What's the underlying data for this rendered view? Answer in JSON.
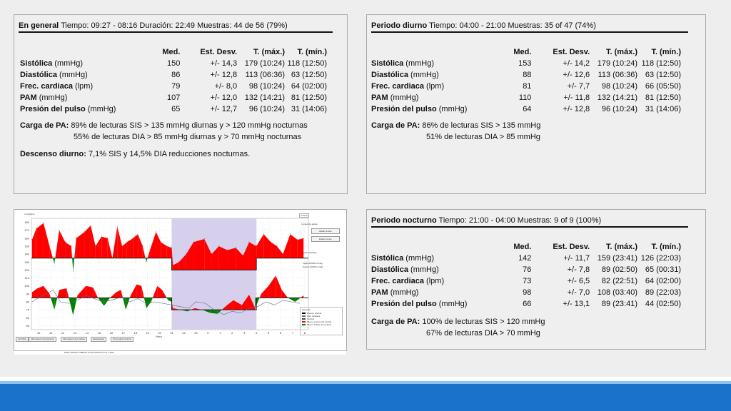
{
  "general": {
    "title": "En general",
    "info": "Tiempo: 09:27 - 08:16 Duración: 22:49 Muestras: 44 de 56 (79%)",
    "headers": [
      "Med.",
      "Est. Desv.",
      "T. (máx.)",
      "T. (mín.)"
    ],
    "rows": [
      {
        "bold": "Sistólica",
        "rest": " (mmHg)",
        "med": "150",
        "sd": "+/- 14,3",
        "max": "179 (10:24)",
        "min": "118 (12:50)"
      },
      {
        "bold": "Diastólica",
        "rest": " (mmHg)",
        "med": "86",
        "sd": "+/- 12,8",
        "max": "113 (06:36)",
        "min": "63 (12:50)"
      },
      {
        "bold": "Frec. cardiaca",
        "rest": " (lpm)",
        "med": "79",
        "sd": "+/- 8,0",
        "max": "98 (10:24)",
        "min": "64 (02:00)"
      },
      {
        "bold": "PAM",
        "rest": " (mmHg)",
        "med": "107",
        "sd": "+/- 12,0",
        "max": "132 (14:21)",
        "min": "81 (12:50)"
      },
      {
        "bold": "Presión del pulso",
        "rest": " (mmHg)",
        "med": "65",
        "sd": "+/- 12,7",
        "max": "96 (10:24)",
        "min": "31 (14:06)"
      }
    ],
    "load_label": "Carga de PA:",
    "load_line1": " 89% de lecturas SIS > 135 mmHg diurnas y > 120 mmHg nocturnas",
    "load_line2": "55% de lecturas DIA > 85 mmHg diurnas y > 70 mmHg nocturnas",
    "dip_label": "Descenso diurno:",
    "dip_text": " 7,1% SIS y 14,5% DIA reducciones nocturnas."
  },
  "day": {
    "title": "Periodo diurno",
    "info": "Tiempo: 04:00 - 21:00 Muestras: 35 of 47 (74%)",
    "headers": [
      "Med.",
      "Est. Desv.",
      "T. (máx.)",
      "T. (mín.)"
    ],
    "rows": [
      {
        "bold": "Sistólica",
        "rest": " (mmHg)",
        "med": "153",
        "sd": "+/- 14,2",
        "max": "179 (10:24)",
        "min": "118 (12:50)"
      },
      {
        "bold": "Diastólica",
        "rest": " (mmHg)",
        "med": "88",
        "sd": "+/- 12,6",
        "max": "113 (06:36)",
        "min": "63 (12:50)"
      },
      {
        "bold": "Frec. cardiaca",
        "rest": " (lpm)",
        "med": "81",
        "sd": "+/- 7,7",
        "max": "98 (10:24)",
        "min": "66 (05:50)"
      },
      {
        "bold": "PAM",
        "rest": " (mmHg)",
        "med": "110",
        "sd": "+/- 11,8",
        "max": "132 (14:21)",
        "min": "81 (12:50)"
      },
      {
        "bold": "Presión del pulso",
        "rest": " (mmHg)",
        "med": "64",
        "sd": "+/- 12,8",
        "max": "96 (10:24)",
        "min": "31 (14:06)"
      }
    ],
    "load_label": "Carga de PA:",
    "load_line1": " 86% de lecturas SIS > 135 mmHg",
    "load_line2": "51% de lecturas DIA > 85 mmHg"
  },
  "night": {
    "title": "Periodo nocturno",
    "info": "Tiempo: 21:00 - 04:00 Muestras: 9 of 9 (100%)",
    "headers": [
      "Med.",
      "Est. Desv.",
      "T. (máx.)",
      "T. (mín.)"
    ],
    "rows": [
      {
        "bold": "Sistólica",
        "rest": " (mmHg)",
        "med": "142",
        "sd": "+/- 11,7",
        "max": "159 (23:41)",
        "min": "126 (22:03)"
      },
      {
        "bold": "Diastólica",
        "rest": " (mmHg)",
        "med": "76",
        "sd": "+/- 7,8",
        "max": "89 (02:50)",
        "min": "65 (00:31)"
      },
      {
        "bold": "Frec. cardiaca",
        "rest": " (lpm)",
        "med": "73",
        "sd": "+/- 6,5",
        "max": "82 (22:51)",
        "min": "64 (02:00)"
      },
      {
        "bold": "PAM",
        "rest": " (mmHg)",
        "med": "98",
        "sd": "+/- 7,0",
        "max": "108 (03:40)",
        "min": "89 (22:03)"
      },
      {
        "bold": "Presión del pulso",
        "rest": " (mmHg)",
        "med": "66",
        "sd": "+/- 13,1",
        "max": "89 (23:41)",
        "min": "44 (02:50)"
      }
    ],
    "load_label": "Carga de PA:",
    "load_line1": " 100% de lecturas SIS > 120 mmHg",
    "load_line2": "67% de lecturas DIA > 70 mmHg"
  },
  "chart_panel": {
    "y_unit": "mmHg/lpm",
    "tab_umbral": "Umbral",
    "limits_label": "Límites de ajuste",
    "edit_limits": "Editar límites",
    "edit_time": "Editar tiempo",
    "current_limits_label": "Ajustes actuales",
    "vigilia": "Vigilia 135/85 mmHg",
    "sueno": "Sueño 120/70 mmHg",
    "legend_title": "Leyenda",
    "legend": [
      "Presión arterial",
      "Frec cardiaca",
      "Umbral",
      "PA por encima del umbral",
      "PA por debajo del umbral"
    ],
    "xlabel": "Hora",
    "tabs": [
      "Ver PDA",
      "Información del paciente",
      "Información del médico",
      "Estadísticas",
      "Promedios horarios"
    ],
    "status": "Diario-2016/17 OMRON Tensión(2016-10-11) 1 Dato",
    "colors": {
      "above": "#ff0000",
      "below": "#008000",
      "night": "#d6d0ec",
      "hr": "#5a6b8c"
    }
  },
  "chart_data": {
    "type": "area",
    "y_ticks": [
      "180",
      "170",
      "160",
      "150",
      "140",
      "130",
      "120",
      "110",
      "100",
      "90",
      "80",
      "70",
      "60",
      "50"
    ],
    "ylim": [
      45,
      185
    ],
    "xlim": [
      9.4,
      32.3
    ],
    "x_ticks": [
      "10",
      "11",
      "12",
      "13",
      "14",
      "15",
      "16",
      "17",
      "18",
      "19",
      "20",
      "21",
      "22",
      "23",
      "0",
      "1",
      "2",
      "3",
      "4",
      "5",
      "6",
      "7",
      "8"
    ],
    "night_start": 21.0,
    "night_end": 28.0,
    "sys_threshold_day": 135,
    "sys_threshold_night": 120,
    "dia_threshold_day": 85,
    "dia_threshold_night": 70,
    "systolic": [
      [
        9.45,
        158
      ],
      [
        9.8,
        172
      ],
      [
        10.4,
        179
      ],
      [
        10.9,
        150
      ],
      [
        11.3,
        128
      ],
      [
        11.7,
        170
      ],
      [
        12.2,
        155
      ],
      [
        12.7,
        150
      ],
      [
        12.85,
        118
      ],
      [
        13.1,
        160
      ],
      [
        13.8,
        168
      ],
      [
        14.3,
        176
      ],
      [
        14.7,
        150
      ],
      [
        15.2,
        162
      ],
      [
        15.7,
        160
      ],
      [
        16.1,
        135
      ],
      [
        16.5,
        175
      ],
      [
        16.9,
        150
      ],
      [
        17.3,
        155
      ],
      [
        17.8,
        160
      ],
      [
        18.2,
        165
      ],
      [
        18.6,
        150
      ],
      [
        18.9,
        130
      ],
      [
        19.2,
        145
      ],
      [
        19.7,
        168
      ],
      [
        20.1,
        155
      ],
      [
        20.6,
        150
      ],
      [
        21.0,
        148
      ],
      [
        21.1,
        126
      ],
      [
        21.6,
        130
      ],
      [
        22.2,
        140
      ],
      [
        22.8,
        155
      ],
      [
        23.7,
        159
      ],
      [
        24.3,
        140
      ],
      [
        24.9,
        150
      ],
      [
        25.6,
        145
      ],
      [
        26.3,
        148
      ],
      [
        26.9,
        138
      ],
      [
        27.4,
        155
      ],
      [
        28.0,
        150
      ],
      [
        28.6,
        165
      ],
      [
        29.2,
        155
      ],
      [
        29.7,
        150
      ],
      [
        30.2,
        140
      ],
      [
        30.8,
        165
      ],
      [
        31.4,
        158
      ],
      [
        31.9,
        160
      ]
    ],
    "diastolic": [
      [
        9.45,
        92
      ],
      [
        9.9,
        97
      ],
      [
        10.4,
        100
      ],
      [
        10.9,
        90
      ],
      [
        11.3,
        70
      ],
      [
        11.7,
        95
      ],
      [
        12.3,
        97
      ],
      [
        12.85,
        63
      ],
      [
        13.2,
        88
      ],
      [
        13.9,
        100
      ],
      [
        14.5,
        98
      ],
      [
        14.9,
        85
      ],
      [
        15.4,
        75
      ],
      [
        15.9,
        85
      ],
      [
        16.4,
        92
      ],
      [
        16.8,
        95
      ],
      [
        17.2,
        70
      ],
      [
        17.6,
        88
      ],
      [
        18.1,
        102
      ],
      [
        18.5,
        100
      ],
      [
        18.9,
        72
      ],
      [
        19.3,
        80
      ],
      [
        19.8,
        100
      ],
      [
        20.2,
        95
      ],
      [
        20.7,
        82
      ],
      [
        21.0,
        80
      ],
      [
        21.1,
        72
      ],
      [
        21.7,
        70
      ],
      [
        22.3,
        68
      ],
      [
        22.9,
        72
      ],
      [
        23.5,
        70
      ],
      [
        24.2,
        66
      ],
      [
        24.8,
        65
      ],
      [
        25.5,
        75
      ],
      [
        26.1,
        82
      ],
      [
        26.8,
        76
      ],
      [
        27.4,
        89
      ],
      [
        27.9,
        72
      ],
      [
        28.4,
        90
      ],
      [
        29.0,
        100
      ],
      [
        29.6,
        113
      ],
      [
        30.1,
        95
      ],
      [
        30.6,
        85
      ],
      [
        31.2,
        80
      ],
      [
        31.9,
        88
      ]
    ],
    "heart_rate": [
      [
        9.45,
        80
      ],
      [
        10.0,
        85
      ],
      [
        10.6,
        90
      ],
      [
        11.2,
        95
      ],
      [
        11.8,
        80
      ],
      [
        12.5,
        78
      ],
      [
        13.2,
        82
      ],
      [
        13.9,
        88
      ],
      [
        14.6,
        84
      ],
      [
        15.3,
        80
      ],
      [
        16.0,
        82
      ],
      [
        16.8,
        86
      ],
      [
        17.5,
        80
      ],
      [
        18.2,
        84
      ],
      [
        18.9,
        78
      ],
      [
        19.6,
        80
      ],
      [
        20.3,
        78
      ],
      [
        21.0,
        76
      ],
      [
        21.7,
        74
      ],
      [
        22.4,
        72
      ],
      [
        23.0,
        80
      ],
      [
        23.8,
        78
      ],
      [
        24.5,
        70
      ],
      [
        25.3,
        64
      ],
      [
        26.0,
        68
      ],
      [
        26.7,
        66
      ],
      [
        27.4,
        72
      ],
      [
        28.1,
        74
      ],
      [
        28.8,
        80
      ],
      [
        29.5,
        76
      ],
      [
        30.2,
        82
      ],
      [
        30.9,
        80
      ],
      [
        31.6,
        78
      ]
    ]
  }
}
